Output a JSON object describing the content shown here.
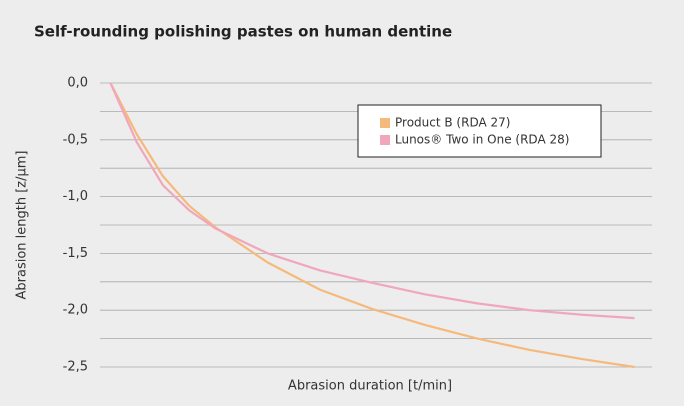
{
  "chart_data": {
    "type": "line",
    "title": "Self-rounding polishing pastes on human dentine",
    "xlabel": "Abrasion duration [t/min]",
    "ylabel": "Abrasion length [z/µm]",
    "x": [
      0,
      5,
      10,
      15,
      20,
      30,
      40,
      50,
      60,
      70,
      80,
      90,
      100
    ],
    "xlim": [
      -2,
      102
    ],
    "series": [
      {
        "name": "Product B (RDA 27)",
        "color": "#f6b97c",
        "values": [
          0,
          -0.45,
          -0.82,
          -1.08,
          -1.27,
          -1.58,
          -1.82,
          -1.99,
          -2.13,
          -2.25,
          -2.35,
          -2.43,
          -2.5
        ]
      },
      {
        "name": "Lunos® Two in One (RDA 28)",
        "color": "#f1a7bb",
        "values": [
          0,
          -0.52,
          -0.9,
          -1.12,
          -1.28,
          -1.5,
          -1.65,
          -1.76,
          -1.86,
          -1.94,
          -2.0,
          -2.04,
          -2.07
        ]
      }
    ],
    "ylim": [
      -2.5,
      0
    ],
    "yticks": [
      {
        "value": 0,
        "label": "0,0"
      },
      {
        "value": -0.5,
        "label": "-0,5"
      },
      {
        "value": -1,
        "label": "-1,0"
      },
      {
        "value": -1.5,
        "label": "-1,5"
      },
      {
        "value": -2,
        "label": "-2,0"
      },
      {
        "value": -2.5,
        "label": "-2,5"
      }
    ],
    "minor_yticks": [
      -0.25,
      -0.75,
      -1.25,
      -1.75,
      -2.25
    ],
    "grid": true,
    "legend": "upper right"
  }
}
